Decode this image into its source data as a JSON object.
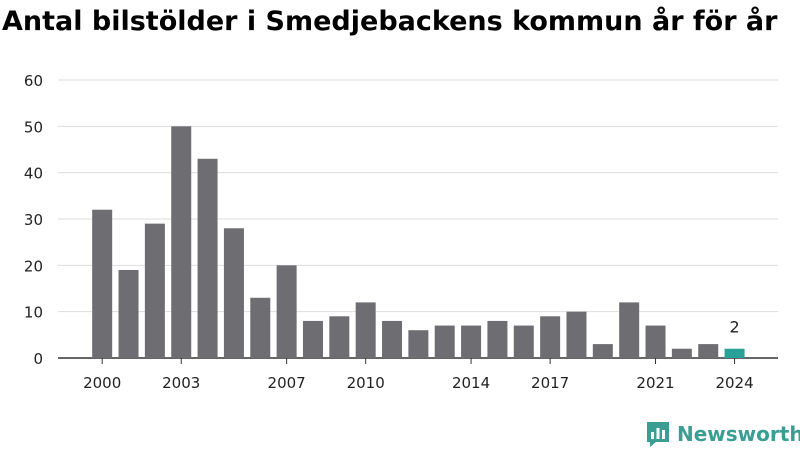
{
  "chart_data": {
    "type": "bar",
    "title": "Antal bilstölder i Smedjebackens kommun år för år",
    "xlabel": "",
    "ylabel": "",
    "categories": [
      "2000",
      "2001",
      "2002",
      "2003",
      "2004",
      "2005",
      "2006",
      "2007",
      "2008",
      "2009",
      "2010",
      "2011",
      "2012",
      "2013",
      "2014",
      "2015",
      "2016",
      "2017",
      "2018",
      "2019",
      "2020",
      "2021",
      "2022",
      "2023",
      "2024"
    ],
    "values": [
      32,
      19,
      29,
      50,
      43,
      28,
      13,
      20,
      8,
      9,
      12,
      8,
      6,
      7,
      7,
      8,
      7,
      9,
      10,
      3,
      12,
      7,
      2,
      3,
      2
    ],
    "x_tick_labels": [
      "2000",
      "2003",
      "2007",
      "2010",
      "2014",
      "2017",
      "2021",
      "2024"
    ],
    "y_ticks": [
      "0",
      "10",
      "20",
      "30",
      "40",
      "50",
      "60"
    ],
    "ylim": [
      0,
      60
    ],
    "grid": true,
    "highlight": {
      "category": "2024",
      "label": "2"
    },
    "colors": {
      "bar": "#6e6d72",
      "highlight": "#2aa198",
      "grid": "#dddddd"
    }
  },
  "brand": {
    "name": "Newsworthy",
    "icon": "newsworthy-logo-icon"
  }
}
